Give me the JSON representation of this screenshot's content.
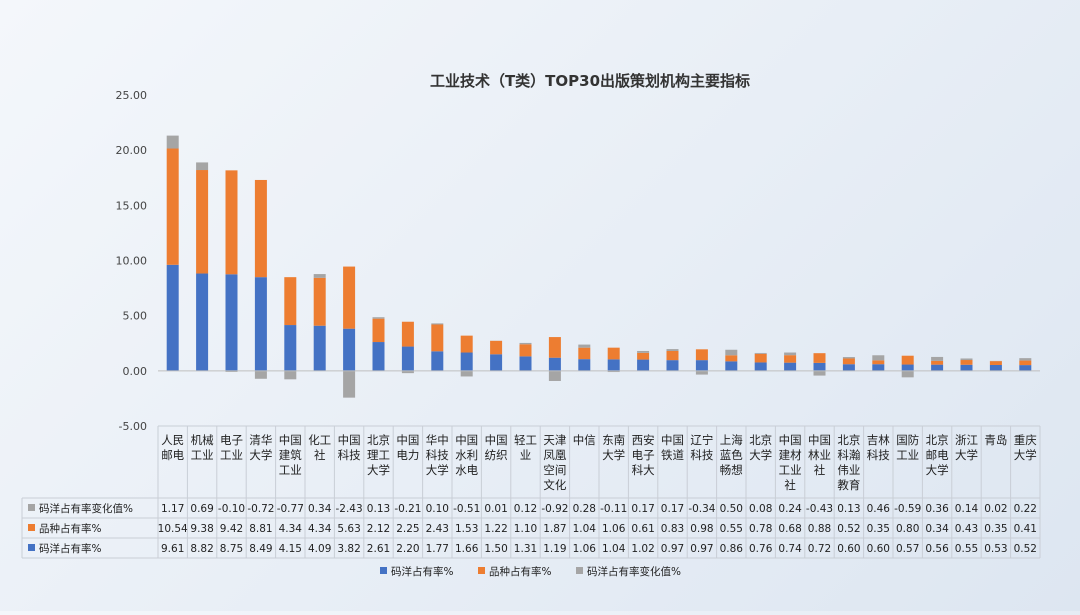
{
  "chart_data": {
    "type": "bar",
    "stacked": true,
    "title": "工业技术（T类）TOP30出版策划机构主要指标",
    "ylim": [
      -5,
      25
    ],
    "yticks": [
      "25.00",
      "20.00",
      "15.00",
      "10.00",
      "5.00",
      "0.00",
      "-5.00"
    ],
    "ytick_values": [
      25,
      20,
      15,
      10,
      5,
      0,
      -5
    ],
    "grid": false,
    "legend_position": "bottom",
    "categories": [
      [
        "人民",
        "邮电"
      ],
      [
        "机械",
        "工业"
      ],
      [
        "电子",
        "工业"
      ],
      [
        "清华",
        "大学"
      ],
      [
        "中国",
        "建筑",
        "工业"
      ],
      [
        "化工",
        "社"
      ],
      [
        "中国",
        "科技"
      ],
      [
        "北京",
        "理工",
        "大学"
      ],
      [
        "中国",
        "电力"
      ],
      [
        "华中",
        "科技",
        "大学"
      ],
      [
        "中国",
        "水利",
        "水电"
      ],
      [
        "中国",
        "纺织"
      ],
      [
        "轻工",
        "业"
      ],
      [
        "天津",
        "凤凰",
        "空间",
        "文化"
      ],
      [
        "中信"
      ],
      [
        "东南",
        "大学"
      ],
      [
        "西安",
        "电子",
        "科大"
      ],
      [
        "中国",
        "铁道"
      ],
      [
        "辽宁",
        "科技"
      ],
      [
        "上海",
        "蓝色",
        "畅想"
      ],
      [
        "北京",
        "大学"
      ],
      [
        "中国",
        "建材",
        "工业",
        "社"
      ],
      [
        "中国",
        "林业",
        "社"
      ],
      [
        "北京",
        "科瀚",
        "伟业",
        "教育"
      ],
      [
        "吉林",
        "科技"
      ],
      [
        "国防",
        "工业"
      ],
      [
        "北京",
        "邮电",
        "大学"
      ],
      [
        "浙江",
        "大学"
      ],
      [
        "青岛"
      ],
      [
        "重庆",
        "大学"
      ]
    ],
    "series": [
      {
        "name": "码洋占有率%",
        "color": "#4472c4",
        "values": [
          9.61,
          8.82,
          8.75,
          8.49,
          4.15,
          4.09,
          3.82,
          2.61,
          2.2,
          1.77,
          1.66,
          1.5,
          1.31,
          1.19,
          1.06,
          1.04,
          1.02,
          0.97,
          0.97,
          0.86,
          0.76,
          0.74,
          0.72,
          0.6,
          0.6,
          0.57,
          0.56,
          0.55,
          0.53,
          0.52
        ],
        "labels": [
          "9.61",
          "8.82",
          "8.75",
          "8.49",
          "4.15",
          "4.09",
          "3.82",
          "2.61",
          "2.20",
          "1.77",
          "1.66",
          "1.50",
          "1.31",
          "1.19",
          "1.06",
          "1.04",
          "1.02",
          "0.97",
          "0.97",
          "0.86",
          "0.76",
          "0.74",
          "0.72",
          "0.60",
          "0.60",
          "0.57",
          "0.56",
          "0.55",
          "0.53",
          "0.52"
        ]
      },
      {
        "name": "品种占有率%",
        "color": "#ed7d31",
        "values": [
          10.54,
          9.38,
          9.42,
          8.81,
          4.34,
          4.34,
          5.63,
          2.12,
          2.25,
          2.43,
          1.53,
          1.22,
          1.1,
          1.87,
          1.04,
          1.06,
          0.61,
          0.83,
          0.98,
          0.55,
          0.78,
          0.68,
          0.88,
          0.52,
          0.35,
          0.8,
          0.34,
          0.43,
          0.35,
          0.41
        ],
        "labels": [
          "10.54",
          "9.38",
          "9.42",
          "8.81",
          "4.34",
          "4.34",
          "5.63",
          "2.12",
          "2.25",
          "2.43",
          "1.53",
          "1.22",
          "1.10",
          "1.87",
          "1.04",
          "1.06",
          "0.61",
          "0.83",
          "0.98",
          "0.55",
          "0.78",
          "0.68",
          "0.88",
          "0.52",
          "0.35",
          "0.80",
          "0.34",
          "0.43",
          "0.35",
          "0.41"
        ]
      },
      {
        "name": "码洋占有率变化值%",
        "color": "#a5a5a5",
        "values": [
          1.17,
          0.69,
          -0.1,
          -0.72,
          -0.77,
          0.34,
          -2.43,
          0.13,
          -0.21,
          0.1,
          -0.51,
          0.01,
          0.12,
          -0.92,
          0.28,
          -0.11,
          0.17,
          0.17,
          -0.34,
          0.5,
          0.08,
          0.24,
          -0.43,
          0.13,
          0.46,
          -0.59,
          0.36,
          0.14,
          0.02,
          0.22
        ],
        "labels": [
          "1.17",
          "0.69",
          "-0.10",
          "-0.72",
          "-0.77",
          "0.34",
          "-2.43",
          "0.13",
          "-0.21",
          "0.10",
          "-0.51",
          "0.01",
          "0.12",
          "-0.92",
          "0.28",
          "-0.11",
          "0.17",
          "0.17",
          "-0.34",
          "0.50",
          "0.08",
          "0.24",
          "-0.43",
          "0.13",
          "0.46",
          "-0.59",
          "0.36",
          "0.14",
          "0.02",
          "0.22"
        ]
      }
    ],
    "table_row_order": [
      2,
      1,
      0
    ]
  }
}
